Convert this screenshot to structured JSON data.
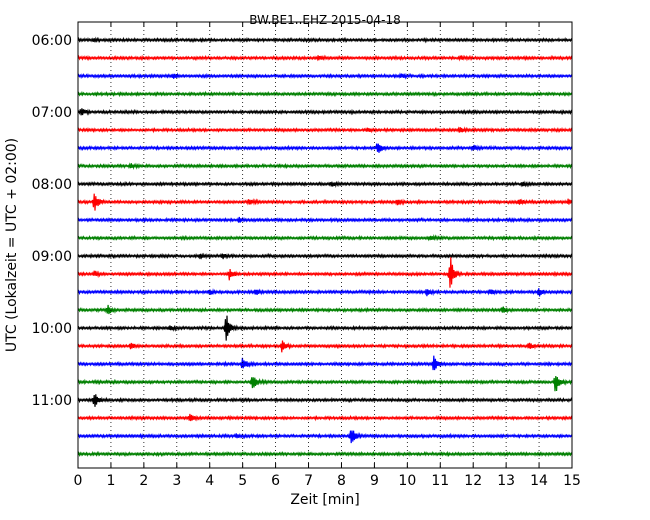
{
  "chart_data": {
    "type": "line",
    "title": "BW.BE1..EHZ 2015-04-18",
    "xlabel": "Zeit  [min]",
    "ylabel": "UTC (Lokalzeit = UTC + 02:00)",
    "xlim": [
      0,
      15
    ],
    "x_ticks": [
      "0",
      "1",
      "2",
      "3",
      "4",
      "5",
      "6",
      "7",
      "8",
      "9",
      "10",
      "11",
      "12",
      "13",
      "14",
      "15"
    ],
    "y_tick_labels": [
      "06:00",
      "07:00",
      "08:00",
      "09:00",
      "10:00",
      "11:00"
    ],
    "grid": "vertical dotted",
    "colors": [
      "#000000",
      "#ff0000",
      "#0000ff",
      "#008000"
    ],
    "traces": [
      {
        "start": "06:00",
        "events": [
          [
            0.5,
            1.5
          ]
        ]
      },
      {
        "start": "06:15",
        "events": [
          [
            7.3,
            2.5
          ],
          [
            11.6,
            2
          ]
        ]
      },
      {
        "start": "06:30",
        "events": [
          [
            2.9,
            2.5
          ],
          [
            9.8,
            2
          ]
        ]
      },
      {
        "start": "06:45",
        "events": []
      },
      {
        "start": "07:00",
        "events": [
          [
            0.1,
            4
          ]
        ]
      },
      {
        "start": "07:15",
        "events": [
          [
            8.8,
            2
          ],
          [
            11.6,
            3
          ]
        ]
      },
      {
        "start": "07:30",
        "events": [
          [
            9.1,
            7
          ],
          [
            12.0,
            3
          ]
        ]
      },
      {
        "start": "07:45",
        "events": [
          [
            1.6,
            2.5
          ]
        ]
      },
      {
        "start": "08:00",
        "events": [
          [
            7.7,
            2.5
          ],
          [
            13.5,
            2
          ]
        ]
      },
      {
        "start": "08:15",
        "events": [
          [
            0.5,
            10
          ],
          [
            5.2,
            3
          ],
          [
            9.7,
            3
          ],
          [
            13.4,
            3
          ],
          [
            14.9,
            3
          ]
        ]
      },
      {
        "start": "08:30",
        "events": [
          [
            4.9,
            3
          ]
        ]
      },
      {
        "start": "08:45",
        "events": [
          [
            10.7,
            3
          ]
        ]
      },
      {
        "start": "09:00",
        "events": [
          [
            3.7,
            2
          ],
          [
            4.4,
            3
          ]
        ]
      },
      {
        "start": "09:15",
        "events": [
          [
            0.5,
            3
          ],
          [
            4.6,
            6
          ],
          [
            11.3,
            20
          ]
        ]
      },
      {
        "start": "09:30",
        "events": [
          [
            4.0,
            3
          ],
          [
            5.4,
            3
          ],
          [
            10.6,
            4
          ],
          [
            12.5,
            3
          ],
          [
            14.0,
            4
          ]
        ]
      },
      {
        "start": "09:45",
        "events": [
          [
            0.9,
            5
          ],
          [
            12.9,
            3
          ]
        ]
      },
      {
        "start": "10:00",
        "events": [
          [
            4.5,
            17
          ],
          [
            2.8,
            2
          ]
        ]
      },
      {
        "start": "10:15",
        "events": [
          [
            1.6,
            3
          ],
          [
            6.2,
            7
          ],
          [
            13.7,
            3
          ]
        ]
      },
      {
        "start": "10:30",
        "events": [
          [
            5.0,
            9
          ],
          [
            10.8,
            8
          ]
        ]
      },
      {
        "start": "10:45",
        "events": [
          [
            5.3,
            10
          ],
          [
            14.5,
            12
          ]
        ]
      },
      {
        "start": "11:00",
        "events": [
          [
            0.5,
            8
          ]
        ]
      },
      {
        "start": "11:15",
        "events": [
          [
            3.4,
            6
          ]
        ]
      },
      {
        "start": "11:30",
        "events": [
          [
            4.8,
            2
          ],
          [
            8.3,
            9
          ]
        ]
      },
      {
        "start": "11:45",
        "events": []
      }
    ]
  }
}
